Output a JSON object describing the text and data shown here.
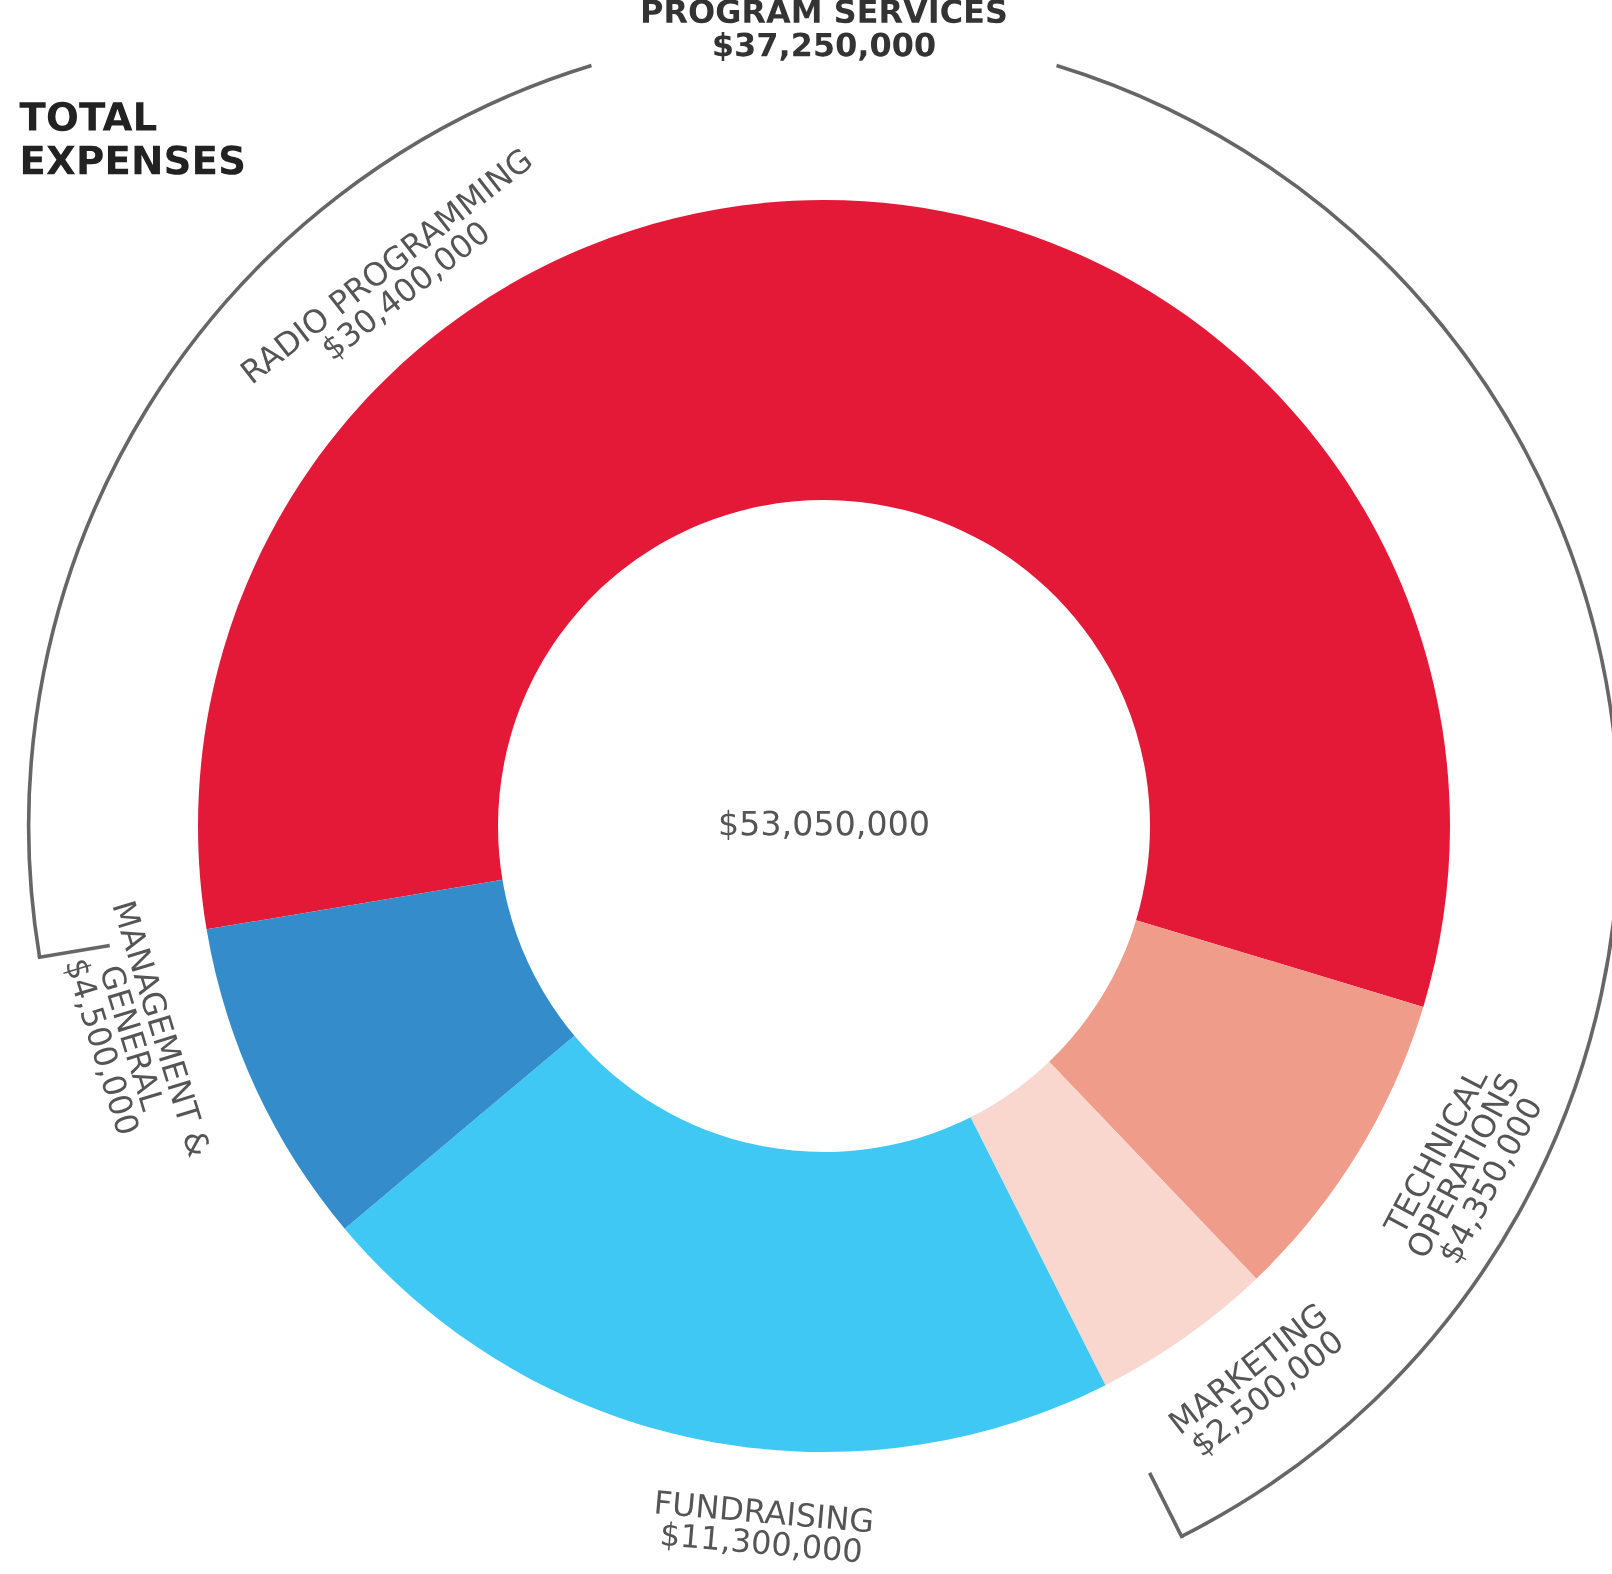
{
  "chart_data": {
    "type": "donut",
    "title": "TOTAL\nEXPENSES",
    "categories": [
      "RADIO PROGRAMMING",
      "TECHNICAL\nOPERATIONS",
      "MARKETING",
      "FUNDRAISING",
      "MANAGEMENT &\nGENERAL"
    ],
    "values": [
      30400000,
      4350000,
      2500000,
      11300000,
      4500000
    ],
    "colors": [
      "#e31937",
      "#ef9c8a",
      "#f9d7cf",
      "#40c8f4",
      "#358ccb"
    ],
    "value_labels": [
      "$30,400,000",
      "$4,350,000",
      "$2,500,000",
      "$11,300,000",
      "$4,500,000"
    ],
    "annotations": [
      "$53,050,000",
      "PROGRAM SERVICES\n$37,250,000"
    ],
    "legend": false
  }
}
